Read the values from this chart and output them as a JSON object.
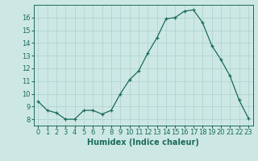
{
  "x": [
    0,
    1,
    2,
    3,
    4,
    5,
    6,
    7,
    8,
    9,
    10,
    11,
    12,
    13,
    14,
    15,
    16,
    17,
    18,
    19,
    20,
    21,
    22,
    23
  ],
  "y": [
    9.4,
    8.7,
    8.5,
    8.0,
    8.0,
    8.7,
    8.7,
    8.4,
    8.7,
    10.0,
    11.1,
    11.8,
    13.2,
    14.4,
    15.9,
    16.0,
    16.5,
    16.6,
    15.6,
    13.8,
    12.7,
    11.4,
    9.5,
    8.1
  ],
  "xlabel": "Humidex (Indice chaleur)",
  "ylabel_ticks": [
    8,
    9,
    10,
    11,
    12,
    13,
    14,
    15,
    16
  ],
  "ylim": [
    7.5,
    17.0
  ],
  "xlim": [
    -0.5,
    23.5
  ],
  "bg_color": "#cde8e4",
  "grid_color": "#b0d4d0",
  "line_color": "#1a6b5a",
  "marker_color": "#1a6b5a",
  "xlabel_fontsize": 7,
  "tick_fontsize": 6
}
